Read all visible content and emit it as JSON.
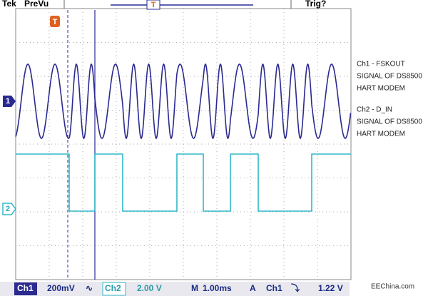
{
  "header": {
    "brand": "Tek",
    "mode": "PreVu",
    "trigger_status": "Trig?",
    "trigger_marker": "T"
  },
  "markers": {
    "ch1": "1",
    "ch2": "2",
    "trigger": "T"
  },
  "notes": {
    "ch1": [
      "Ch1 - FSKOUT",
      "SIGNAL OF DS8500",
      "HART MODEM"
    ],
    "ch2": [
      "Ch2 - D_IN",
      "SIGNAL OF DS8500",
      "HART MODEM"
    ]
  },
  "watermark": "EEChina.com",
  "footer": {
    "ch1": "Ch1",
    "ch1_scale": "200mV",
    "ch1_coupling": "∿",
    "ch2": "Ch2",
    "ch2_scale": "2.00 V",
    "m": "M",
    "timebase": "1.00ms",
    "a": "A",
    "trig_source": "Ch1",
    "trig_slope": "⤵",
    "trig_level": "1.22 V"
  }
}
